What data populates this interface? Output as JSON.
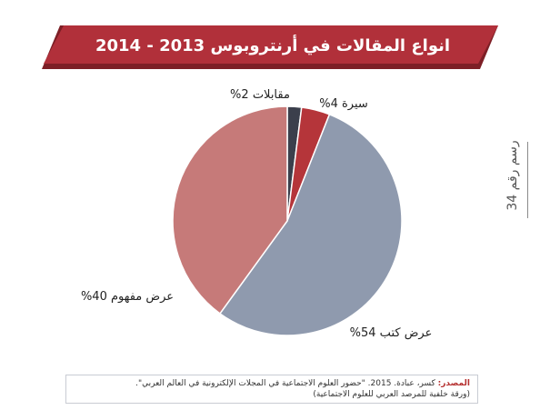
{
  "colors": {
    "banner": "#b1303a",
    "banner_dark": "#7d1f26",
    "title_text": "#ffffff"
  },
  "chart_data": {
    "type": "pie",
    "title": "انواع المقالات في أرنتروبوس 2013 - 2014",
    "slices": [
      {
        "label": "مقابلات",
        "value": 2,
        "display": "مقابلات 2%",
        "color": "#3b3f4c"
      },
      {
        "label": "سيرة",
        "value": 4,
        "display": "سيرة 4%",
        "color": "#b5353a"
      },
      {
        "label": "عرض كتب",
        "value": 54,
        "display": "عرض كتب 54%",
        "color": "#8f9aae"
      },
      {
        "label": "عرض مفهوم",
        "value": 40,
        "display": "عرض مفهوم 40%",
        "color": "#c67a79"
      }
    ]
  },
  "figure_label": "رسم رقم 34",
  "source": {
    "key": "المصدر:",
    "line1": "كسر، عبادة. 2015. \"حضور العلوم الاجتماعية في المجلات الإلكترونية في العالم العربي\".",
    "line2": "(ورقة خلفية للمرصد العربي للعلوم الاجتماعية)"
  }
}
